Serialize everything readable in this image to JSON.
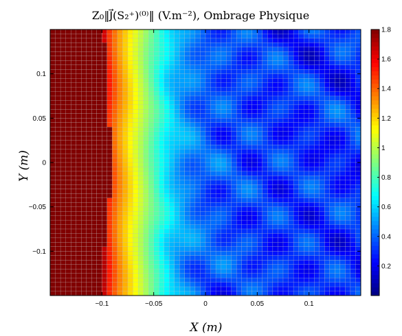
{
  "chart_data": {
    "type": "heatmap",
    "title": "Z₀‖J⃗(S₂⁺)⁽⁰⁾‖ (V.m⁻²), Ombrage Physique",
    "xlabel": "X (m)",
    "ylabel": "Y (m)",
    "xlim": [
      -0.15,
      0.15
    ],
    "ylim": [
      -0.15,
      0.15
    ],
    "x_ticks": [
      -0.1,
      -0.05,
      0,
      0.05,
      0.1
    ],
    "x_tick_labels": [
      "−0.1",
      "−0.05",
      "0",
      "0.05",
      "0.1"
    ],
    "y_ticks": [
      -0.1,
      -0.05,
      0,
      0.05,
      0.1
    ],
    "y_tick_labels": [
      "−0.1",
      "−0.05",
      "0",
      "0.05",
      "0.1"
    ],
    "colorbar": {
      "colormap": "jet",
      "range": [
        0,
        1.8
      ],
      "ticks": [
        0.2,
        0.4,
        0.6,
        0.8,
        1,
        1.2,
        1.4,
        1.6,
        1.8
      ],
      "tick_labels": [
        "0.2",
        "0.4",
        "0.6",
        "0.8",
        "1",
        "1.2",
        "1.4",
        "1.6",
        "1.8"
      ]
    },
    "grid_cells": 60,
    "mesh_edge_color": "#c0c0c0",
    "profile": {
      "description_of_values": "field magnitude vs X (m), averaged over Y",
      "x": [
        -0.15,
        -0.13,
        -0.11,
        -0.1,
        -0.095,
        -0.085,
        -0.075,
        -0.065,
        -0.055,
        -0.045,
        -0.035,
        -0.025,
        -0.015,
        0,
        0.05,
        0.1,
        0.15
      ],
      "value": [
        1.8,
        1.8,
        1.8,
        1.8,
        1.55,
        1.35,
        1.2,
        1.05,
        0.9,
        0.75,
        0.62,
        0.52,
        0.45,
        0.38,
        0.32,
        0.3,
        0.3
      ]
    },
    "saturated_edge_x": [
      -0.098,
      -0.096,
      -0.093,
      -0.09,
      -0.093,
      -0.098,
      -0.1
    ]
  }
}
